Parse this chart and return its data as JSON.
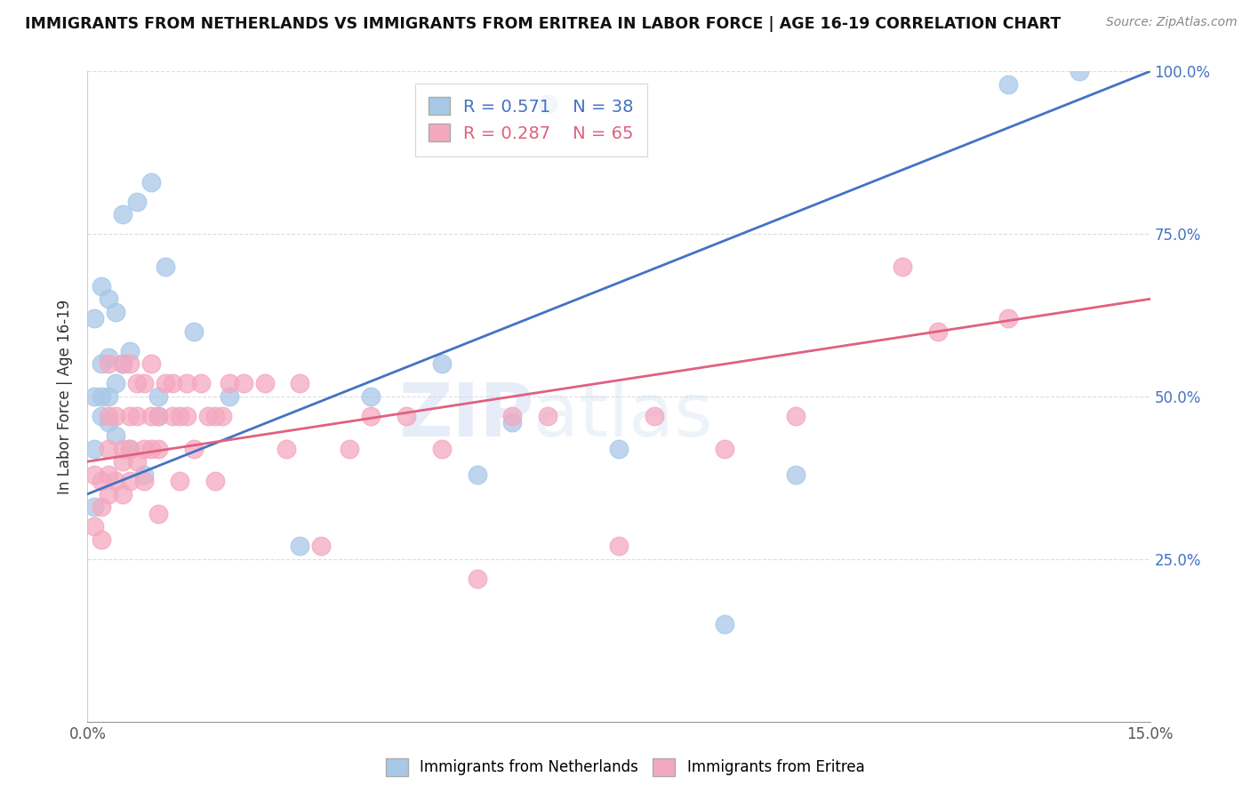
{
  "title": "IMMIGRANTS FROM NETHERLANDS VS IMMIGRANTS FROM ERITREA IN LABOR FORCE | AGE 16-19 CORRELATION CHART",
  "source": "Source: ZipAtlas.com",
  "ylabel": "In Labor Force | Age 16-19",
  "xlim": [
    0.0,
    0.15
  ],
  "ylim": [
    0.0,
    1.0
  ],
  "netherlands_R": 0.571,
  "netherlands_N": 38,
  "eritrea_R": 0.287,
  "eritrea_N": 65,
  "netherlands_color": "#a8c8e8",
  "eritrea_color": "#f4a8c0",
  "netherlands_line_color": "#4472c4",
  "eritrea_line_color": "#e06080",
  "watermark": "ZIPatlas",
  "nl_line_x0": 0.0,
  "nl_line_y0": 0.35,
  "nl_line_x1": 0.15,
  "nl_line_y1": 1.0,
  "er_line_x0": 0.0,
  "er_line_y0": 0.4,
  "er_line_x1": 0.15,
  "er_line_y1": 0.65,
  "netherlands_x": [
    0.001,
    0.001,
    0.001,
    0.001,
    0.002,
    0.002,
    0.002,
    0.002,
    0.003,
    0.003,
    0.003,
    0.003,
    0.004,
    0.004,
    0.004,
    0.005,
    0.005,
    0.006,
    0.006,
    0.007,
    0.008,
    0.009,
    0.01,
    0.01,
    0.011,
    0.015,
    0.02,
    0.03,
    0.04,
    0.05,
    0.055,
    0.06,
    0.065,
    0.075,
    0.09,
    0.1,
    0.13,
    0.14
  ],
  "netherlands_y": [
    0.33,
    0.42,
    0.5,
    0.62,
    0.47,
    0.5,
    0.55,
    0.67,
    0.46,
    0.5,
    0.56,
    0.65,
    0.44,
    0.52,
    0.63,
    0.55,
    0.78,
    0.42,
    0.57,
    0.8,
    0.38,
    0.83,
    0.47,
    0.5,
    0.7,
    0.6,
    0.5,
    0.27,
    0.5,
    0.55,
    0.38,
    0.46,
    0.95,
    0.42,
    0.15,
    0.38,
    0.98,
    1.0
  ],
  "eritrea_x": [
    0.001,
    0.001,
    0.002,
    0.002,
    0.002,
    0.003,
    0.003,
    0.003,
    0.003,
    0.003,
    0.004,
    0.004,
    0.005,
    0.005,
    0.005,
    0.005,
    0.006,
    0.006,
    0.006,
    0.006,
    0.007,
    0.007,
    0.007,
    0.008,
    0.008,
    0.008,
    0.009,
    0.009,
    0.009,
    0.01,
    0.01,
    0.01,
    0.011,
    0.012,
    0.012,
    0.013,
    0.013,
    0.014,
    0.014,
    0.015,
    0.016,
    0.017,
    0.018,
    0.018,
    0.019,
    0.02,
    0.022,
    0.025,
    0.028,
    0.03,
    0.033,
    0.037,
    0.04,
    0.045,
    0.05,
    0.055,
    0.06,
    0.065,
    0.075,
    0.08,
    0.09,
    0.1,
    0.115,
    0.12,
    0.13
  ],
  "eritrea_y": [
    0.3,
    0.38,
    0.28,
    0.33,
    0.37,
    0.35,
    0.38,
    0.42,
    0.47,
    0.55,
    0.37,
    0.47,
    0.35,
    0.4,
    0.42,
    0.55,
    0.37,
    0.42,
    0.47,
    0.55,
    0.4,
    0.47,
    0.52,
    0.37,
    0.42,
    0.52,
    0.42,
    0.47,
    0.55,
    0.32,
    0.42,
    0.47,
    0.52,
    0.47,
    0.52,
    0.37,
    0.47,
    0.47,
    0.52,
    0.42,
    0.52,
    0.47,
    0.37,
    0.47,
    0.47,
    0.52,
    0.52,
    0.52,
    0.42,
    0.52,
    0.27,
    0.42,
    0.47,
    0.47,
    0.42,
    0.22,
    0.47,
    0.47,
    0.27,
    0.47,
    0.42,
    0.47,
    0.7,
    0.6,
    0.62
  ]
}
